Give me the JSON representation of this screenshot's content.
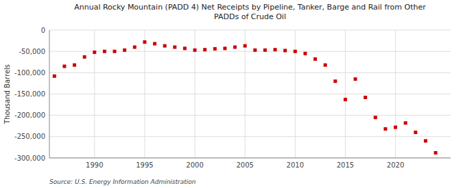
{
  "chart_data": {
    "type": "scatter",
    "title": "Annual Rocky Mountain (PADD 4) Net Receipts by Pipeline, Tanker, Barge and Rail from Other\nPADDs of Crude Oil",
    "ylabel": "Thousand Barrels",
    "source": "Source: U.S. Energy Information Administration",
    "color": "#cc0000",
    "marker": "square",
    "grid": true,
    "x": [
      1986,
      1987,
      1988,
      1989,
      1990,
      1991,
      1992,
      1993,
      1994,
      1995,
      1996,
      1997,
      1998,
      1999,
      2000,
      2001,
      2002,
      2003,
      2004,
      2005,
      2006,
      2007,
      2008,
      2009,
      2010,
      2011,
      2012,
      2013,
      2014,
      2015,
      2016,
      2017,
      2018,
      2019,
      2020,
      2021,
      2022,
      2023,
      2024
    ],
    "values": [
      -108000,
      -85000,
      -82000,
      -63000,
      -52000,
      -50000,
      -50000,
      -47000,
      -40000,
      -28000,
      -32000,
      -37000,
      -40000,
      -43000,
      -47000,
      -46000,
      -44000,
      -43000,
      -40000,
      -37000,
      -47000,
      -47000,
      -46000,
      -48000,
      -50000,
      -55000,
      -68000,
      -82000,
      -120000,
      -163000,
      -115000,
      -158000,
      -205000,
      -232000,
      -228000,
      -218000,
      -240000,
      -260000,
      -288000
    ],
    "xlim": [
      1985.5,
      2025.5
    ],
    "xticks": [
      1990,
      1995,
      2000,
      2005,
      2010,
      2015,
      2020
    ],
    "ylim": [
      -300000,
      0
    ],
    "yticks": [
      0,
      {
        "value": -50000,
        "label": "-50,000"
      },
      {
        "value": -100000,
        "label": "-100,000"
      },
      {
        "value": -150000,
        "label": "-150,000"
      },
      {
        "value": -200000,
        "label": "-200,000"
      },
      {
        "value": -250000,
        "label": "-250,000"
      },
      {
        "value": -300000,
        "label": "-300,000"
      }
    ]
  }
}
